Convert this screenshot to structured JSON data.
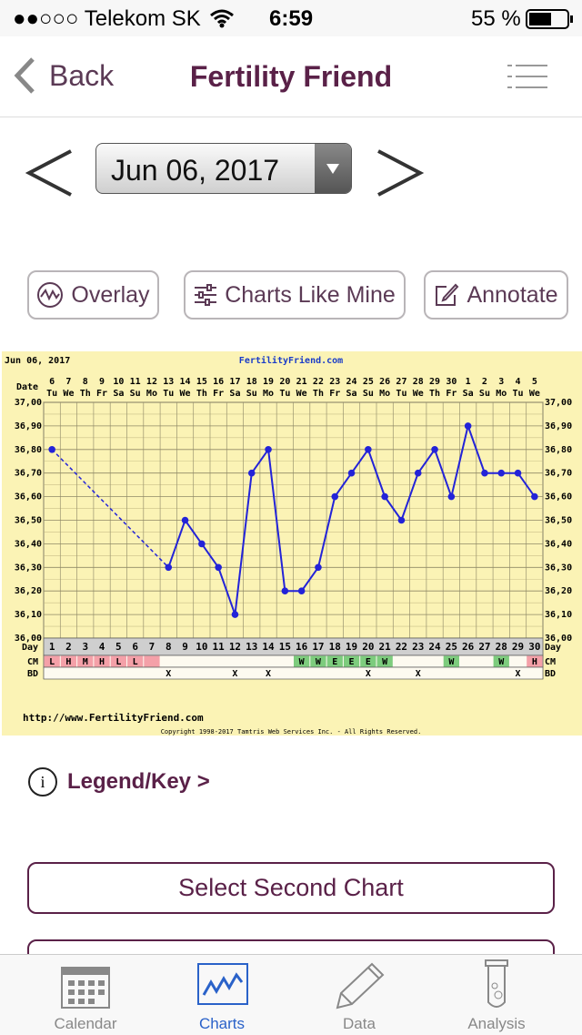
{
  "status_bar": {
    "carrier": "●●○○○ Telekom SK",
    "time": "6:59",
    "battery": "55 %"
  },
  "nav": {
    "back": "Back",
    "title": "Fertility Friend"
  },
  "date_picker": {
    "date": "Jun 06, 2017"
  },
  "buttons": [
    "Overlay",
    "Charts Like Mine",
    "Annotate"
  ],
  "chart_data": {
    "type": "line",
    "title": "Jun 06, 2017",
    "subtitle": "FertilityFriend.com",
    "date_label": "Date",
    "day_label": "Day",
    "cm_label": "CM",
    "bd_label": "BD",
    "dates": [
      "6",
      "7",
      "8",
      "9",
      "10",
      "11",
      "12",
      "13",
      "14",
      "15",
      "16",
      "17",
      "18",
      "19",
      "20",
      "21",
      "22",
      "23",
      "24",
      "25",
      "26",
      "27",
      "28",
      "29",
      "30",
      "1",
      "2",
      "3",
      "4",
      "5"
    ],
    "weekdays": [
      "Tu",
      "We",
      "Th",
      "Fr",
      "Sa",
      "Su",
      "Mo",
      "Tu",
      "We",
      "Th",
      "Fr",
      "Sa",
      "Su",
      "Mo",
      "Tu",
      "We",
      "Th",
      "Fr",
      "Sa",
      "Su",
      "Mo",
      "Tu",
      "We",
      "Th",
      "Fr",
      "Sa",
      "Su",
      "Mo",
      "Tu",
      "We"
    ],
    "categories": [
      "1",
      "2",
      "3",
      "4",
      "5",
      "6",
      "7",
      "8",
      "9",
      "10",
      "11",
      "12",
      "13",
      "14",
      "15",
      "16",
      "17",
      "18",
      "19",
      "20",
      "21",
      "22",
      "23",
      "24",
      "25",
      "26",
      "27",
      "28",
      "29",
      "30"
    ],
    "series": [
      {
        "color": "#2323d8",
        "values": [
          36.8,
          null,
          null,
          null,
          null,
          null,
          null,
          36.3,
          36.5,
          36.4,
          36.3,
          36.1,
          36.7,
          36.8,
          36.2,
          36.2,
          36.3,
          36.6,
          36.7,
          36.8,
          36.6,
          36.5,
          36.7,
          36.8,
          36.6,
          36.9,
          36.7,
          36.7,
          36.7,
          36.6
        ]
      }
    ],
    "cm": [
      "L",
      "H",
      "M",
      "H",
      "L",
      "L",
      null,
      null,
      null,
      null,
      null,
      null,
      null,
      null,
      null,
      "W",
      "W",
      "E",
      "E",
      "E",
      "W",
      null,
      null,
      null,
      "W",
      null,
      null,
      "W",
      null,
      "H"
    ],
    "cm_fill": [
      "#f4a0a8",
      "#f4a0a8",
      "#f4a0a8",
      "#f4a0a8",
      "#f4a0a8",
      "#f4a0a8",
      "#f4a0a8",
      null,
      null,
      null,
      null,
      null,
      null,
      null,
      null,
      "#7dcc7d",
      "#7dcc7d",
      "#7dcc7d",
      "#7dcc7d",
      "#7dcc7d",
      "#7dcc7d",
      null,
      null,
      null,
      "#7dcc7d",
      null,
      null,
      "#7dcc7d",
      null,
      "#f4a0a8"
    ],
    "bd": [
      null,
      null,
      null,
      null,
      null,
      null,
      null,
      "X",
      null,
      null,
      null,
      "X",
      null,
      "X",
      null,
      null,
      null,
      null,
      null,
      "X",
      null,
      null,
      "X",
      null,
      null,
      null,
      null,
      null,
      "X",
      null
    ],
    "ylim": [
      36.0,
      37.0
    ],
    "yticks": [
      {
        "value": 36.0,
        "label": "36,00"
      },
      {
        "value": 36.1,
        "label": "36,10"
      },
      {
        "value": 36.2,
        "label": "36,20"
      },
      {
        "value": 36.3,
        "label": "36,30"
      },
      {
        "value": 36.4,
        "label": "36,40"
      },
      {
        "value": 36.5,
        "label": "36,50"
      },
      {
        "value": 36.6,
        "label": "36,60"
      },
      {
        "value": 36.7,
        "label": "36,70"
      },
      {
        "value": 36.8,
        "label": "36,80"
      },
      {
        "value": 36.9,
        "label": "36,90"
      },
      {
        "value": 37.0,
        "label": "37,00"
      }
    ],
    "grid": true,
    "footer_url": "http://www.FertilityFriend.com",
    "copyright": "Copyright 1998-2017 Tamtris Web Services Inc. - All Rights Reserved."
  },
  "legend_link": "Legend/Key >",
  "select_second_chart": "Select Second Chart",
  "tabs": [
    "Calendar",
    "Charts",
    "Data",
    "Analysis"
  ]
}
